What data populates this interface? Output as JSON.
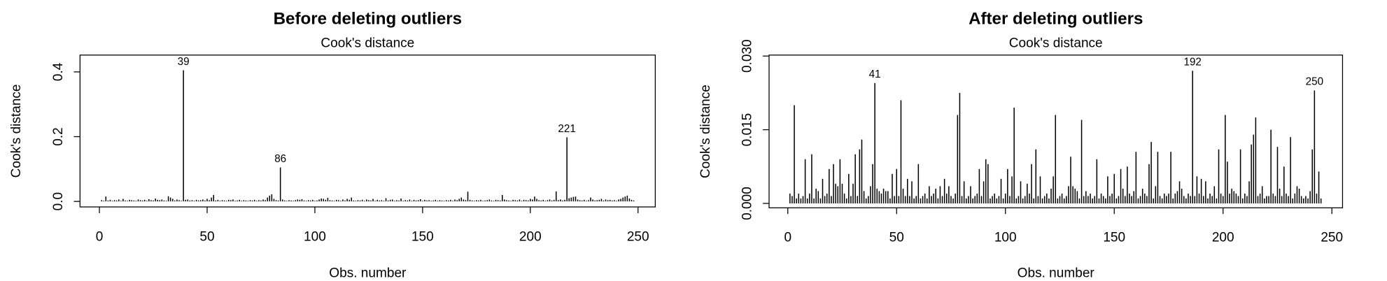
{
  "chart_data": [
    {
      "type": "bar",
      "title": "Before deleting outliers",
      "subtitle": "Cook's distance",
      "xlabel": "Obs. number",
      "ylabel": "Cook's distance",
      "color": "#000000",
      "xlim": [
        -9,
        258
      ],
      "ylim": [
        -0.017,
        0.452
      ],
      "xticks": [
        0,
        50,
        100,
        150,
        200,
        250
      ],
      "yticks": [
        {
          "value": 0,
          "label": "0.0"
        },
        {
          "value": 0.2,
          "label": "0.2"
        },
        {
          "value": 0.4,
          "label": "0.4"
        }
      ],
      "annotations": [
        {
          "text": "39",
          "x": 39
        },
        {
          "text": "86",
          "x": 84
        },
        {
          "text": "221",
          "x": 217
        }
      ],
      "x": [
        1,
        2,
        3,
        4,
        5,
        6,
        7,
        8,
        9,
        10,
        11,
        12,
        13,
        14,
        15,
        16,
        17,
        18,
        19,
        20,
        21,
        22,
        23,
        24,
        25,
        26,
        27,
        28,
        29,
        30,
        31,
        32,
        33,
        34,
        35,
        36,
        37,
        38,
        39,
        40,
        41,
        42,
        43,
        44,
        45,
        46,
        47,
        48,
        49,
        50,
        51,
        52,
        53,
        54,
        55,
        56,
        57,
        58,
        59,
        60,
        61,
        62,
        63,
        64,
        65,
        66,
        67,
        68,
        69,
        70,
        71,
        72,
        73,
        74,
        75,
        76,
        77,
        78,
        79,
        80,
        81,
        82,
        83,
        84,
        85,
        86,
        87,
        88,
        89,
        90,
        91,
        92,
        93,
        94,
        95,
        96,
        97,
        98,
        99,
        100,
        101,
        102,
        103,
        104,
        105,
        106,
        107,
        108,
        109,
        110,
        111,
        112,
        113,
        114,
        115,
        116,
        117,
        118,
        119,
        120,
        121,
        122,
        123,
        124,
        125,
        126,
        127,
        128,
        129,
        130,
        131,
        132,
        133,
        134,
        135,
        136,
        137,
        138,
        139,
        140,
        141,
        142,
        143,
        144,
        145,
        146,
        147,
        148,
        149,
        150,
        151,
        152,
        153,
        154,
        155,
        156,
        157,
        158,
        159,
        160,
        161,
        162,
        163,
        164,
        165,
        166,
        167,
        168,
        169,
        170,
        171,
        172,
        173,
        174,
        175,
        176,
        177,
        178,
        179,
        180,
        181,
        182,
        183,
        184,
        185,
        186,
        187,
        188,
        189,
        190,
        191,
        192,
        193,
        194,
        195,
        196,
        197,
        198,
        199,
        200,
        201,
        202,
        203,
        204,
        205,
        206,
        207,
        208,
        209,
        210,
        211,
        212,
        213,
        214,
        215,
        216,
        217,
        218,
        219,
        220,
        221,
        222,
        223,
        224,
        225,
        226,
        227,
        228,
        229,
        230,
        231,
        232,
        233,
        234,
        235,
        236,
        237,
        238,
        239,
        240,
        241,
        242,
        243,
        244,
        245,
        246,
        247,
        248
      ],
      "values": [
        0.004,
        0.002,
        0.015,
        0.003,
        0.005,
        0.002,
        0.004,
        0.003,
        0.006,
        0.002,
        0.008,
        0.003,
        0.002,
        0.005,
        0.004,
        0.003,
        0.002,
        0.006,
        0.004,
        0.003,
        0.005,
        0.002,
        0.007,
        0.004,
        0.003,
        0.009,
        0.005,
        0.004,
        0.006,
        0.003,
        0.002,
        0.016,
        0.012,
        0.008,
        0.003,
        0.006,
        0.004,
        0.002,
        0.405,
        0.005,
        0.006,
        0.003,
        0.004,
        0.002,
        0.005,
        0.003,
        0.004,
        0.006,
        0.003,
        0.008,
        0.004,
        0.012,
        0.02,
        0.003,
        0.005,
        0.002,
        0.004,
        0.003,
        0.002,
        0.005,
        0.004,
        0.006,
        0.002,
        0.003,
        0.005,
        0.002,
        0.004,
        0.003,
        0.002,
        0.004,
        0.003,
        0.005,
        0.002,
        0.004,
        0.003,
        0.006,
        0.004,
        0.012,
        0.018,
        0.022,
        0.008,
        0.004,
        0.003,
        0.105,
        0.006,
        0.003,
        0.002,
        0.004,
        0.003,
        0.002,
        0.004,
        0.006,
        0.005,
        0.007,
        0.003,
        0.002,
        0.004,
        0.003,
        0.005,
        0.002,
        0.003,
        0.006,
        0.009,
        0.008,
        0.005,
        0.011,
        0.004,
        0.003,
        0.002,
        0.005,
        0.004,
        0.002,
        0.006,
        0.003,
        0.008,
        0.005,
        0.012,
        0.003,
        0.002,
        0.004,
        0.003,
        0.005,
        0.002,
        0.006,
        0.004,
        0.003,
        0.008,
        0.002,
        0.005,
        0.003,
        0.004,
        0.002,
        0.01,
        0.003,
        0.005,
        0.006,
        0.002,
        0.004,
        0.003,
        0.009,
        0.002,
        0.004,
        0.003,
        0.006,
        0.002,
        0.005,
        0.003,
        0.004,
        0.007,
        0.002,
        0.005,
        0.003,
        0.004,
        0.002,
        0.003,
        0.005,
        0.002,
        0.004,
        0.003,
        0.002,
        0.004,
        0.003,
        0.005,
        0.002,
        0.006,
        0.004,
        0.008,
        0.012,
        0.006,
        0.004,
        0.03,
        0.005,
        0.003,
        0.002,
        0.004,
        0.003,
        0.005,
        0.002,
        0.003,
        0.004,
        0.006,
        0.003,
        0.002,
        0.005,
        0.004,
        0.003,
        0.02,
        0.006,
        0.004,
        0.003,
        0.002,
        0.005,
        0.004,
        0.003,
        0.006,
        0.002,
        0.005,
        0.004,
        0.003,
        0.008,
        0.006,
        0.015,
        0.008,
        0.004,
        0.003,
        0.005,
        0.002,
        0.004,
        0.006,
        0.003,
        0.005,
        0.031,
        0.004,
        0.006,
        0.003,
        0.005,
        0.198,
        0.01,
        0.012,
        0.014,
        0.015,
        0.006,
        0.004,
        0.003,
        0.005,
        0.002,
        0.004,
        0.012,
        0.006,
        0.003,
        0.004,
        0.005,
        0.008,
        0.003,
        0.006,
        0.004,
        0.005,
        0.003,
        0.004,
        0.002,
        0.006,
        0.008,
        0.012,
        0.015,
        0.018,
        0.009,
        0.005,
        0.003
      ]
    },
    {
      "type": "bar",
      "title": "After deleting outliers",
      "subtitle": "Cook's distance",
      "xlabel": "Obs. number",
      "ylabel": "Cook's distance",
      "color": "#000000",
      "xlim": [
        -8.6,
        254.9
      ],
      "ylim": [
        -0.0009,
        0.0302
      ],
      "xticks": [
        0,
        50,
        100,
        150,
        200,
        250
      ],
      "yticks": [
        {
          "value": 0,
          "label": "0.000"
        },
        {
          "value": 0.015,
          "label": "0.015"
        },
        {
          "value": 0.03,
          "label": "0.030"
        }
      ],
      "annotations": [
        {
          "text": "41",
          "x": 40
        },
        {
          "text": "192",
          "x": 186
        },
        {
          "text": "250",
          "x": 242
        }
      ],
      "x": [
        1,
        2,
        3,
        4,
        5,
        6,
        7,
        8,
        9,
        10,
        11,
        12,
        13,
        14,
        15,
        16,
        17,
        18,
        19,
        20,
        21,
        22,
        23,
        24,
        25,
        26,
        27,
        28,
        29,
        30,
        31,
        32,
        33,
        34,
        35,
        36,
        37,
        38,
        39,
        40,
        41,
        42,
        43,
        44,
        45,
        46,
        47,
        48,
        49,
        50,
        51,
        52,
        53,
        54,
        55,
        56,
        57,
        58,
        59,
        60,
        61,
        62,
        63,
        64,
        65,
        66,
        67,
        68,
        69,
        70,
        71,
        72,
        73,
        74,
        75,
        76,
        77,
        78,
        79,
        80,
        81,
        82,
        83,
        84,
        85,
        86,
        87,
        88,
        89,
        90,
        91,
        92,
        93,
        94,
        95,
        96,
        97,
        98,
        99,
        100,
        101,
        102,
        103,
        104,
        105,
        106,
        107,
        108,
        109,
        110,
        111,
        112,
        113,
        114,
        115,
        116,
        117,
        118,
        119,
        120,
        121,
        122,
        123,
        124,
        125,
        126,
        127,
        128,
        129,
        130,
        131,
        132,
        133,
        134,
        135,
        136,
        137,
        138,
        139,
        140,
        141,
        142,
        143,
        144,
        145,
        146,
        147,
        148,
        149,
        150,
        151,
        152,
        153,
        154,
        155,
        156,
        157,
        158,
        159,
        160,
        161,
        162,
        163,
        164,
        165,
        166,
        167,
        168,
        169,
        170,
        171,
        172,
        173,
        174,
        175,
        176,
        177,
        178,
        179,
        180,
        181,
        182,
        183,
        184,
        185,
        186,
        187,
        188,
        189,
        190,
        191,
        192,
        193,
        194,
        195,
        196,
        197,
        198,
        199,
        200,
        201,
        202,
        203,
        204,
        205,
        206,
        207,
        208,
        209,
        210,
        211,
        212,
        213,
        214,
        215,
        216,
        217,
        218,
        219,
        220,
        221,
        222,
        223,
        224,
        225,
        226,
        227,
        228,
        229,
        230,
        231,
        232,
        233,
        234,
        235,
        236,
        237,
        238,
        239,
        240,
        241,
        242,
        243,
        244,
        245
      ],
      "values": [
        0.002,
        0.0015,
        0.02,
        0.001,
        0.002,
        0.001,
        0.0015,
        0.009,
        0.001,
        0.002,
        0.01,
        0.001,
        0.003,
        0.0025,
        0.001,
        0.005,
        0.0015,
        0.002,
        0.007,
        0.0015,
        0.008,
        0.004,
        0.0035,
        0.009,
        0.004,
        0.002,
        0.001,
        0.006,
        0.0015,
        0.004,
        0.01,
        0.0015,
        0.011,
        0.013,
        0.0025,
        0.001,
        0.0015,
        0.0035,
        0.008,
        0.0245,
        0.003,
        0.0025,
        0.002,
        0.003,
        0.0025,
        0.0025,
        0.001,
        0.006,
        0.0015,
        0.007,
        0.0015,
        0.021,
        0.003,
        0.0015,
        0.005,
        0.0015,
        0.0045,
        0.001,
        0.0015,
        0.008,
        0.001,
        0.0015,
        0.002,
        0.001,
        0.0035,
        0.0015,
        0.002,
        0.003,
        0.001,
        0.0035,
        0.0015,
        0.005,
        0.002,
        0.0035,
        0.0015,
        0.001,
        0.002,
        0.018,
        0.0225,
        0.0015,
        0.0045,
        0.001,
        0.0015,
        0.0035,
        0.001,
        0.0015,
        0.002,
        0.007,
        0.0015,
        0.0045,
        0.009,
        0.008,
        0.001,
        0.0015,
        0.002,
        0.001,
        0.0015,
        0.005,
        0.001,
        0.002,
        0.007,
        0.0015,
        0.0055,
        0.0195,
        0.001,
        0.0015,
        0.0045,
        0.001,
        0.0015,
        0.004,
        0.002,
        0.008,
        0.001,
        0.011,
        0.0015,
        0.0055,
        0.001,
        0.0015,
        0.002,
        0.001,
        0.003,
        0.0055,
        0.018,
        0.001,
        0.0015,
        0.002,
        0.001,
        0.0015,
        0.0035,
        0.0095,
        0.0035,
        0.003,
        0.0025,
        0.001,
        0.017,
        0.0015,
        0.0025,
        0.0015,
        0.002,
        0.001,
        0.0015,
        0.009,
        0.001,
        0.002,
        0.0015,
        0.001,
        0.0055,
        0.0015,
        0.002,
        0.006,
        0.001,
        0.0015,
        0.007,
        0.003,
        0.0015,
        0.0075,
        0.002,
        0.0015,
        0.0025,
        0.0105,
        0.001,
        0.0015,
        0.003,
        0.002,
        0.0015,
        0.008,
        0.0125,
        0.001,
        0.0035,
        0.0105,
        0.0015,
        0.001,
        0.002,
        0.0015,
        0.002,
        0.0105,
        0.001,
        0.002,
        0.0025,
        0.0045,
        0.003,
        0.0015,
        0.001,
        0.002,
        0.0015,
        0.027,
        0.0015,
        0.0055,
        0.002,
        0.005,
        0.0015,
        0.0045,
        0.001,
        0.002,
        0.0015,
        0.0035,
        0.001,
        0.011,
        0.002,
        0.0015,
        0.018,
        0.0085,
        0.002,
        0.003,
        0.0025,
        0.002,
        0.0015,
        0.011,
        0.001,
        0.002,
        0.0015,
        0.0045,
        0.012,
        0.014,
        0.0175,
        0.0015,
        0.002,
        0.0035,
        0.001,
        0.0015,
        0.0015,
        0.015,
        0.002,
        0.0015,
        0.0115,
        0.003,
        0.0015,
        0.0075,
        0.002,
        0.0015,
        0.0135,
        0.001,
        0.002,
        0.0035,
        0.003,
        0.0015,
        0.001,
        0.0015,
        0.001,
        0.0025,
        0.011,
        0.023,
        0.002,
        0.0065,
        0.001
      ]
    }
  ]
}
